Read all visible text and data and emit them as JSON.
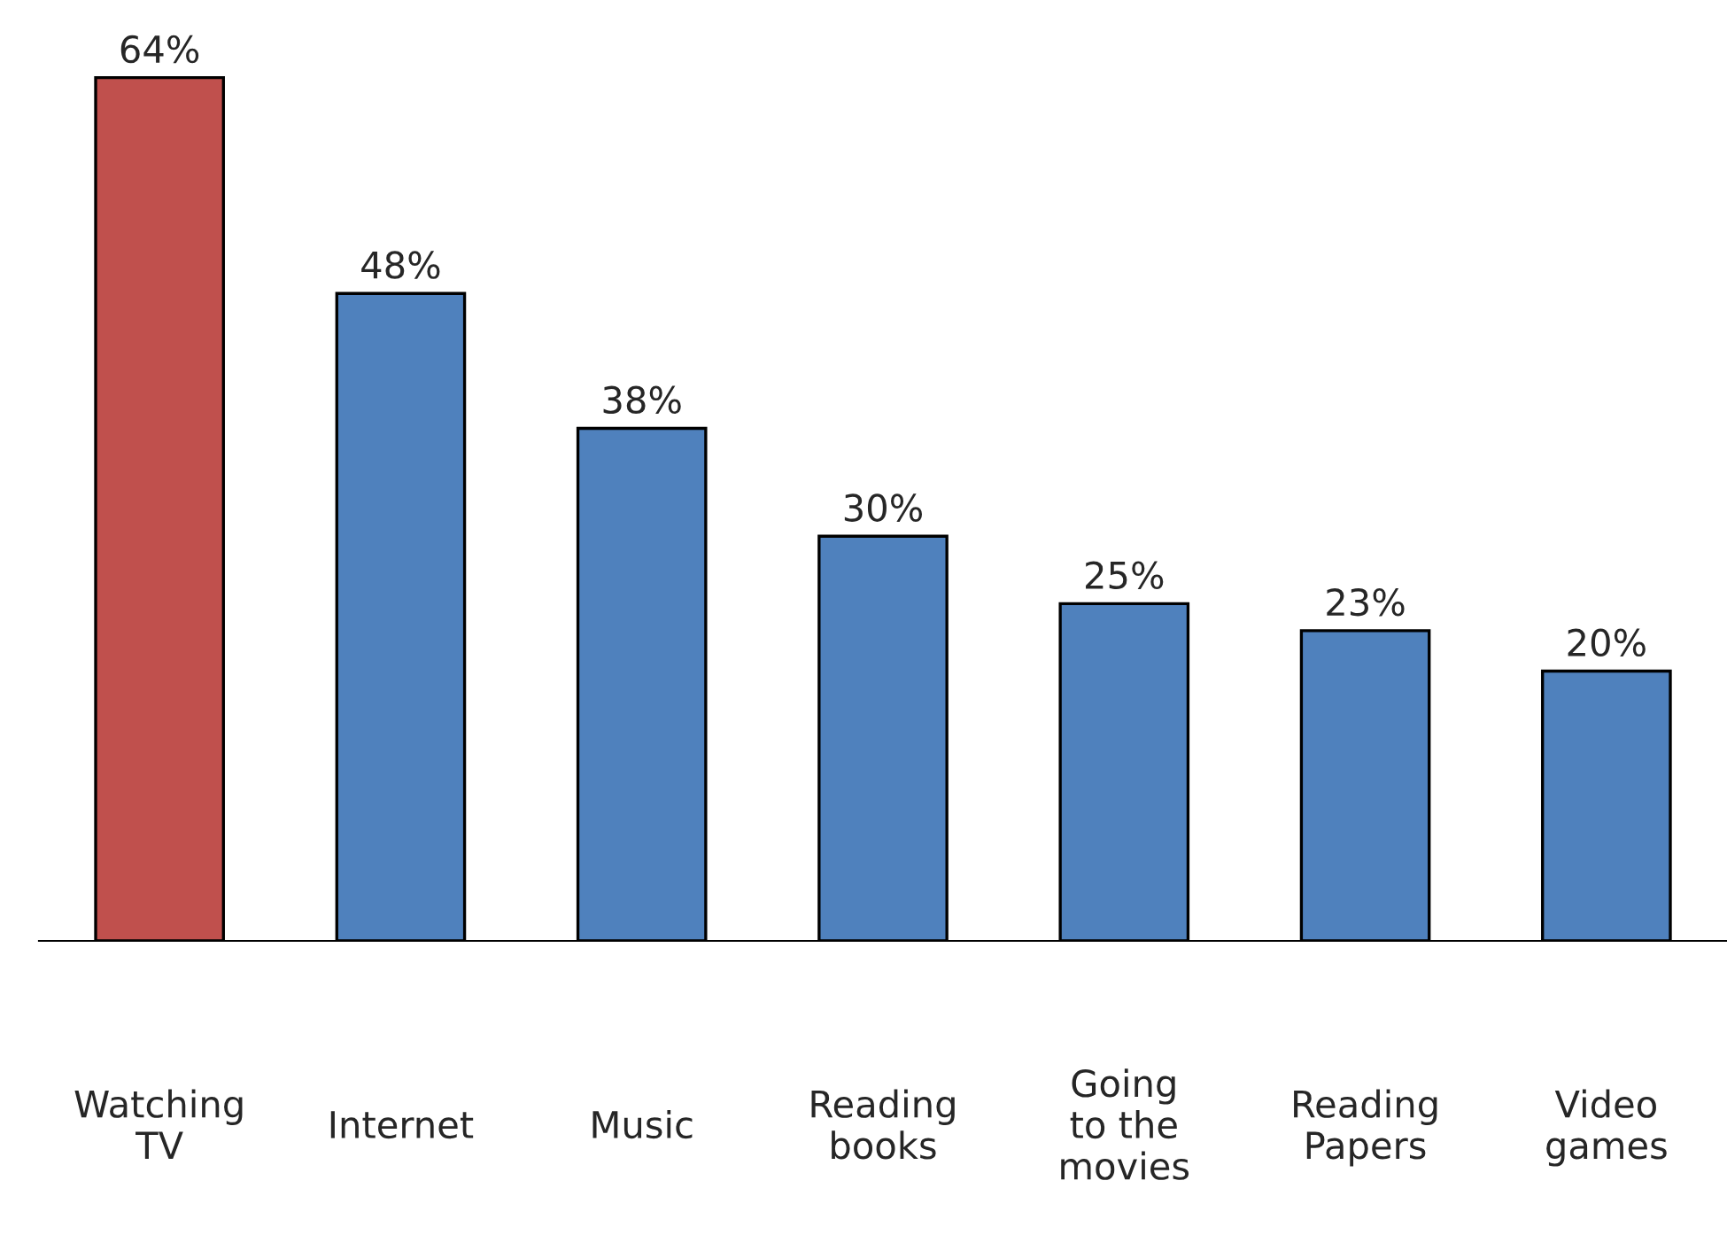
{
  "chart_data": {
    "type": "bar",
    "categories": [
      "Watching\nTV",
      "Internet",
      "Music",
      "Reading\nbooks",
      "Going\nto the\nmovies",
      "Reading\nPapers",
      "Video\ngames"
    ],
    "values": [
      64,
      48,
      38,
      30,
      25,
      23,
      20
    ],
    "colors": [
      "#c0504d",
      "#4f81bd",
      "#4f81bd",
      "#4f81bd",
      "#4f81bd",
      "#4f81bd",
      "#4f81bd"
    ],
    "value_labels": [
      "64%",
      "48%",
      "38%",
      "30%",
      "25%",
      "23%",
      "20%"
    ],
    "tick_labels": "x",
    "grid": false,
    "legend": false
  }
}
